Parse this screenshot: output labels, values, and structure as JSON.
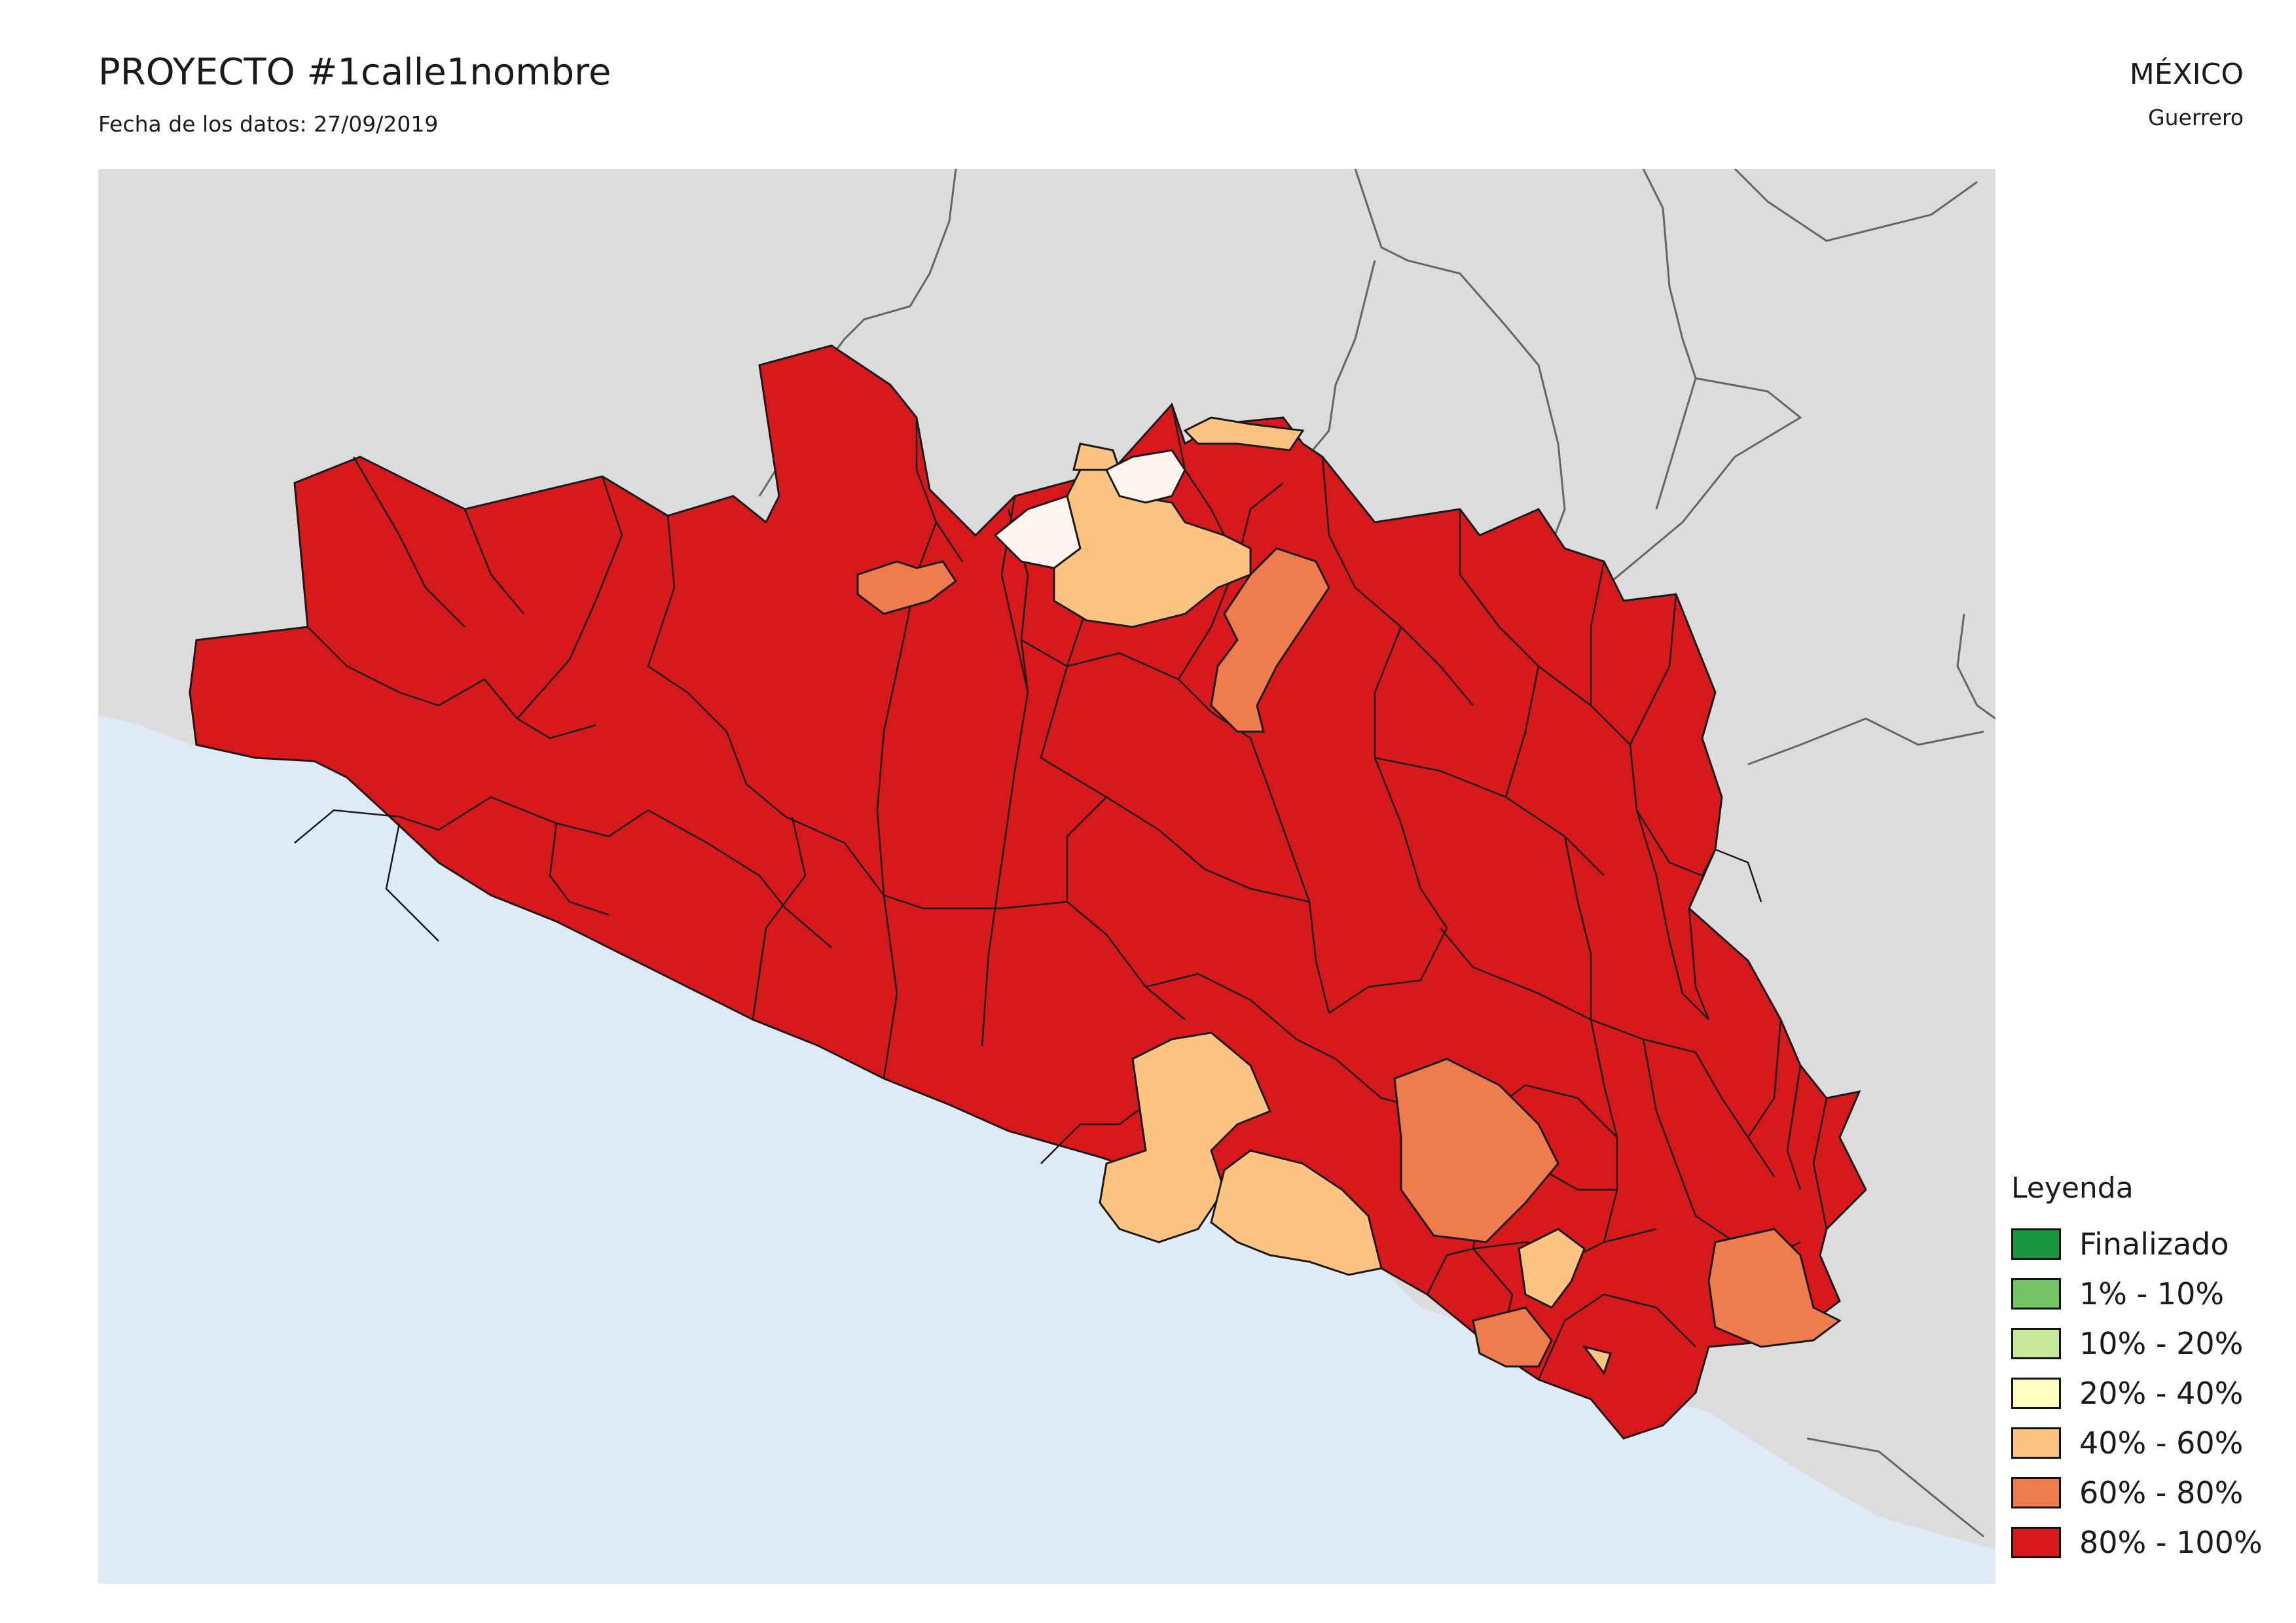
{
  "header": {
    "title": "PROYECTO #1calle1nombre",
    "date_text": "Fecha de los datos: 27/09/2019",
    "country": "MÉXICO",
    "state": "Guerrero"
  },
  "map": {
    "colors": {
      "ocean": "#deebf7",
      "land_neighbors": "#dcdcdc",
      "neighbor_borders": "#666666",
      "region_borders": "#1a1a1a"
    }
  },
  "legend": {
    "title": "Leyenda",
    "items": [
      {
        "label": "Finalizado",
        "color": "#1a9641"
      },
      {
        "label": "1% - 10%",
        "color": "#74c365"
      },
      {
        "label": "10% - 20%",
        "color": "#c7e89a"
      },
      {
        "label": "20% - 40%",
        "color": "#ffffbf"
      },
      {
        "label": "40% - 60%",
        "color": "#fdc380"
      },
      {
        "label": "60% - 80%",
        "color": "#ee7c4c"
      },
      {
        "label": "80% - 100%",
        "color": "#d7191c"
      }
    ]
  }
}
